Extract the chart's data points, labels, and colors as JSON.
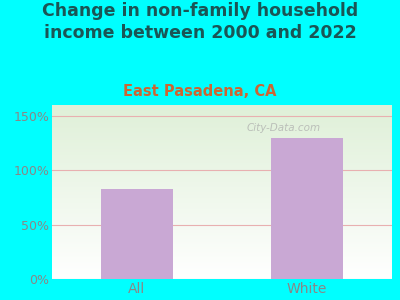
{
  "title": "Change in non-family household\nincome between 2000 and 2022",
  "subtitle": "East Pasadena, CA",
  "categories": [
    "All",
    "White"
  ],
  "values": [
    83,
    130
  ],
  "bar_color": "#c9a8d4",
  "title_fontsize": 12.5,
  "subtitle_fontsize": 10.5,
  "subtitle_color": "#cc6633",
  "title_color": "#1a5555",
  "tick_label_color": "#888888",
  "ylim": [
    0,
    160
  ],
  "yticks": [
    0,
    50,
    100,
    150
  ],
  "ytick_labels": [
    "0%",
    "50%",
    "100%",
    "150%"
  ],
  "background_outer": "#00ffff",
  "background_plot_top_left": "#dff0d8",
  "background_plot_bottom_right": "#ffffff",
  "grid_color": "#e8b0b0",
  "bar_width": 0.42,
  "watermark": "City-Data.com",
  "watermark_color": "#aaaaaa"
}
